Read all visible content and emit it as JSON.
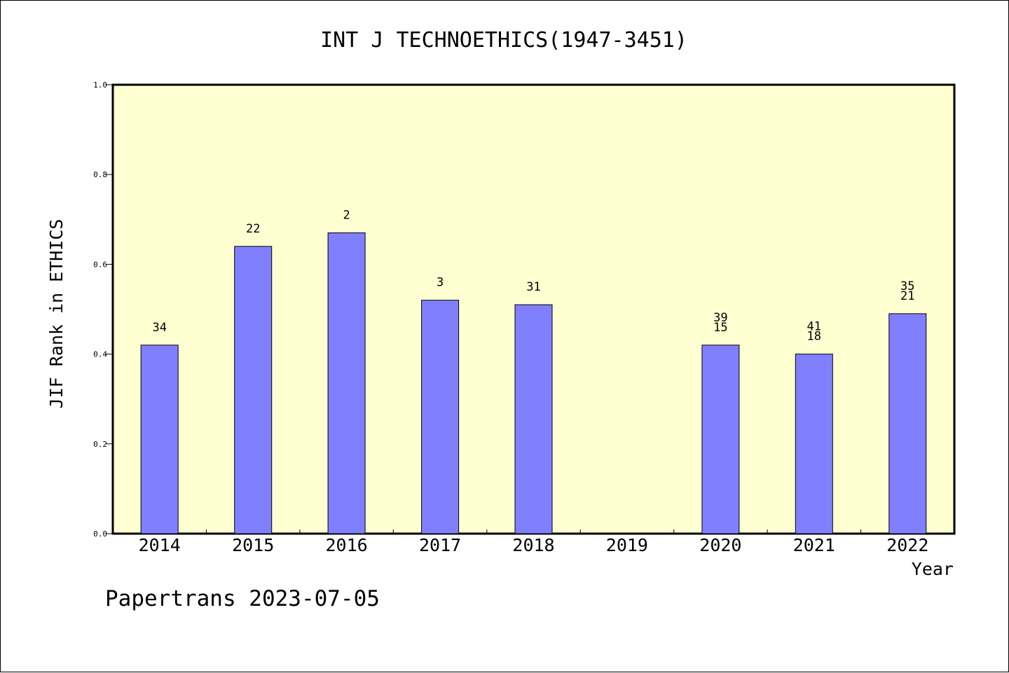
{
  "chart_data": {
    "type": "bar",
    "title": "INT J TECHNOETHICS(1947-3451)",
    "xlabel": "Year",
    "ylabel": "JIF Rank in ETHICS",
    "categories": [
      "2014",
      "2015",
      "2016",
      "2017",
      "2018",
      "2019",
      "2020",
      "2021",
      "2022"
    ],
    "values": [
      0.42,
      0.64,
      0.67,
      0.52,
      0.51,
      null,
      0.42,
      0.4,
      0.49
    ],
    "bar_labels": [
      [
        "34"
      ],
      [
        "22"
      ],
      [
        "2"
      ],
      [
        "3"
      ],
      [
        "31"
      ],
      [],
      [
        "39",
        "15"
      ],
      [
        "41",
        "18"
      ],
      [
        "35",
        "21"
      ]
    ],
    "ylim": [
      0,
      1.0
    ],
    "yticks": [
      "0.0",
      "0.2",
      "0.4",
      "0.6",
      "0.8",
      "1.0"
    ],
    "grid": false,
    "colors": {
      "bar_fill": "#8080ff",
      "plot_background": "#ffffd2",
      "axis": "#000000"
    }
  },
  "footer": {
    "text": "Papertrans 2023-07-05"
  }
}
